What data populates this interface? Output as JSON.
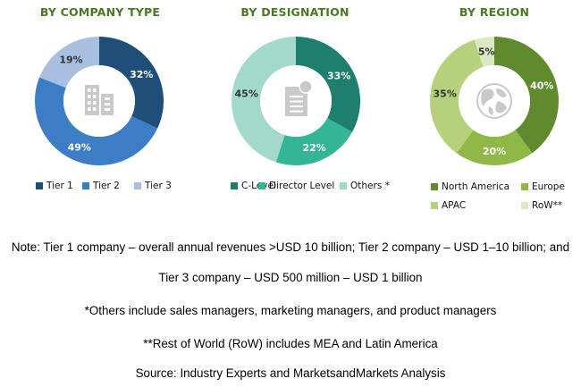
{
  "chart_data": [
    {
      "type": "pie",
      "title": "BY COMPANY TYPE",
      "icon": "building-icon",
      "categories": [
        "Tier 1",
        "Tier 2",
        "Tier 3"
      ],
      "values": [
        32,
        49,
        19
      ],
      "labels": [
        "32%",
        "49%",
        "19%"
      ],
      "colors": [
        "#1f4e79",
        "#3d7dc6",
        "#a8bfe0"
      ],
      "label_colors": [
        "#ffffff",
        "#ffffff",
        "#333333"
      ],
      "donut": true
    },
    {
      "type": "pie",
      "title": "BY DESIGNATION",
      "icon": "document-icon",
      "categories": [
        "C-Level",
        "Director Level",
        "Others *"
      ],
      "values": [
        33,
        22,
        45
      ],
      "labels": [
        "33%",
        "22%",
        "45%"
      ],
      "colors": [
        "#1e7f6e",
        "#34b596",
        "#a3d9cb"
      ],
      "label_colors": [
        "#ffffff",
        "#ffffff",
        "#333333"
      ],
      "donut": true
    },
    {
      "type": "pie",
      "title": "BY REGION",
      "icon": "globe-icon",
      "categories": [
        "North America",
        "Europe",
        "APAC",
        "RoW**"
      ],
      "values": [
        40,
        20,
        35,
        5
      ],
      "labels": [
        "40%",
        "20%",
        "35%",
        "5%"
      ],
      "colors": [
        "#5f8a2d",
        "#8fb847",
        "#b6d17c",
        "#dbe9c3"
      ],
      "label_colors": [
        "#ffffff",
        "#ffffff",
        "#333333",
        "#333333"
      ],
      "donut": true
    }
  ],
  "notes": [
    "Note: Tier 1 company – overall annual revenues >USD 10 billion; Tier 2 company – USD 1–10 billion; and",
    "Tier 3 company – USD 500 million – USD 1 billion",
    "*Others include sales managers, marketing managers, and product managers",
    "**Rest of World (RoW) includes MEA and Latin America",
    "Source: Industry Experts and MarketsandMarkets Analysis"
  ]
}
